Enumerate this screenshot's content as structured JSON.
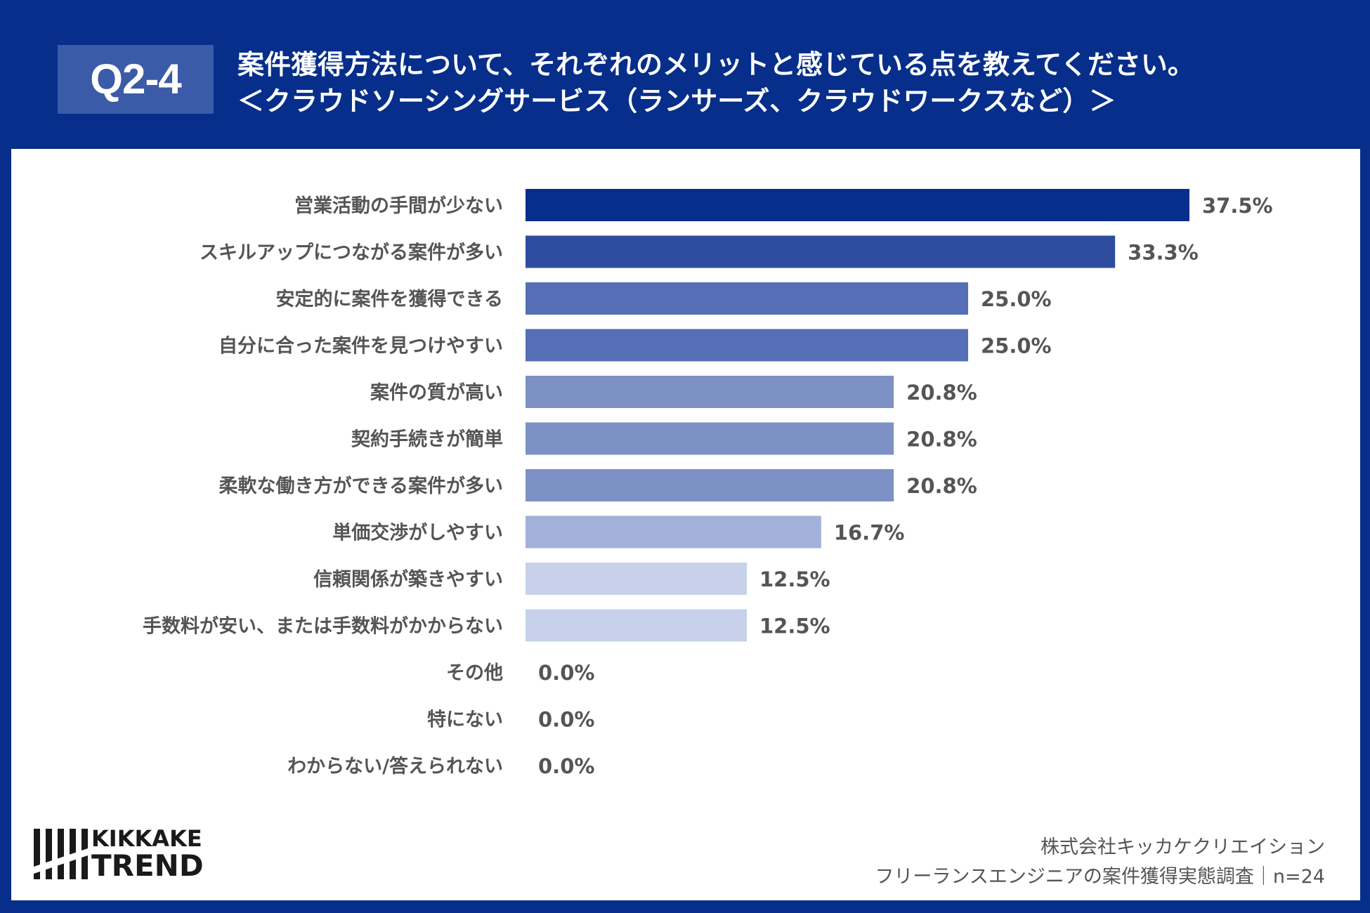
{
  "header": {
    "question_id": "Q2-4",
    "title_line1": "案件獲得方法について、それぞれのメリットと感じている点を教えてください。",
    "title_line2": "＜クラウドソーシングサービス（ランサーズ、クラウドワークスなど）＞"
  },
  "logo": {
    "line1": "KIKKAKE",
    "line2": "TREND",
    "icon": "kikkake-trend-logo-icon"
  },
  "credit": {
    "line1": "株式会社キッカケクリエイション",
    "line2": "フリーランスエンジニアの案件獲得実態調査｜n=24"
  },
  "chart_data": {
    "type": "bar",
    "orientation": "horizontal",
    "categories": [
      "営業活動の手間が少ない",
      "スキルアップにつながる案件が多い",
      "安定的に案件を獲得できる",
      "自分に合った案件を見つけやすい",
      "案件の質が高い",
      "契約手続きが簡単",
      "柔軟な働き方ができる案件が多い",
      "単価交渉がしやすい",
      "信頼関係が築きやすい",
      "手数料が安い、または手数料がかからない",
      "その他",
      "特にない",
      "わからない/答えられない"
    ],
    "values": [
      37.5,
      33.3,
      25.0,
      25.0,
      20.8,
      20.8,
      20.8,
      16.7,
      12.5,
      12.5,
      0.0,
      0.0,
      0.0
    ],
    "value_labels": [
      "37.5%",
      "33.3%",
      "25.0%",
      "25.0%",
      "20.8%",
      "20.8%",
      "20.8%",
      "16.7%",
      "12.5%",
      "12.5%",
      "0.0%",
      "0.0%",
      "0.0%"
    ],
    "bar_colors": [
      "#062e8a",
      "#2f4da0",
      "#566fb6",
      "#566fb6",
      "#7d91c6",
      "#7d91c6",
      "#7d91c6",
      "#a3b1da",
      "#c7d1ea",
      "#c7d1ea",
      "#c7d1ea",
      "#c7d1ea",
      "#c7d1ea"
    ],
    "xlim": [
      0,
      37.5
    ],
    "grid": false,
    "legend": "none"
  }
}
